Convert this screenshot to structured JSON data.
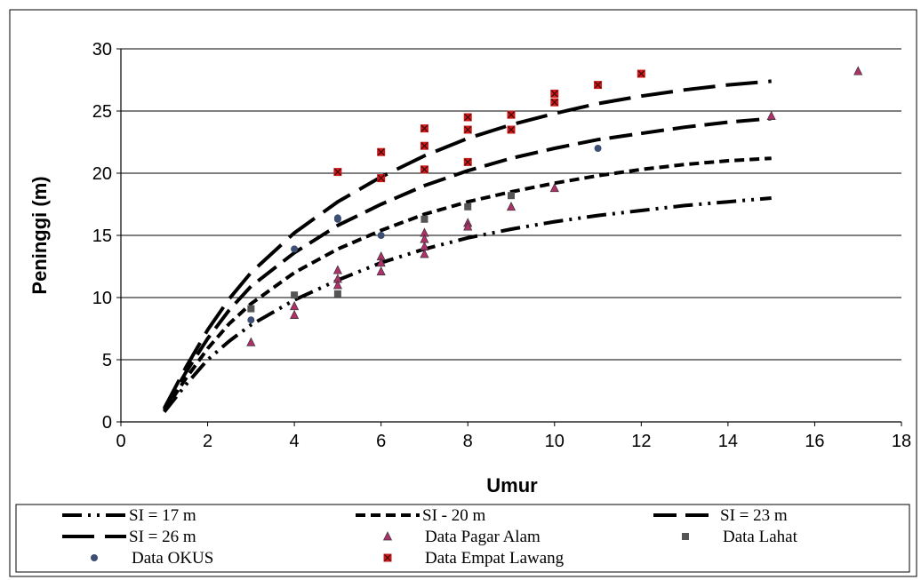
{
  "chart_data": {
    "type": "scatter",
    "title": "",
    "xlabel": "Umur",
    "ylabel": "Peninggi (m)",
    "xlim": [
      0,
      18
    ],
    "ylim": [
      0,
      30
    ],
    "xticks": [
      0,
      2,
      4,
      6,
      8,
      10,
      12,
      14,
      16,
      18
    ],
    "yticks": [
      0,
      5,
      10,
      15,
      20,
      25,
      30
    ],
    "grid": "horizontal",
    "legend_position": "bottom",
    "curves": [
      {
        "name": "SI = 17 m",
        "style": "dash-dot-dot",
        "x": [
          1,
          1.5,
          2,
          2.5,
          3,
          4,
          5,
          6,
          7,
          8,
          9,
          10,
          11,
          12,
          13,
          14,
          15
        ],
        "y": [
          0.8,
          3.0,
          5.0,
          6.5,
          7.8,
          9.8,
          11.4,
          12.8,
          13.9,
          14.8,
          15.5,
          16.1,
          16.6,
          17.0,
          17.4,
          17.7,
          18.0
        ]
      },
      {
        "name": "SI - 20 m",
        "style": "short-dash",
        "x": [
          1,
          1.5,
          2,
          2.5,
          3,
          4,
          5,
          6,
          7,
          8,
          9,
          10,
          11,
          12,
          13,
          14,
          15
        ],
        "y": [
          0.9,
          3.5,
          5.9,
          7.9,
          9.5,
          12.0,
          13.9,
          15.4,
          16.7,
          17.7,
          18.5,
          19.2,
          19.8,
          20.3,
          20.7,
          21.0,
          21.2
        ]
      },
      {
        "name": "SI = 23 m",
        "style": "long-dash",
        "x": [
          1,
          1.5,
          2,
          2.5,
          3,
          4,
          5,
          6,
          7,
          8,
          9,
          10,
          11,
          12,
          13,
          14,
          15
        ],
        "y": [
          1.0,
          4.0,
          6.7,
          9.0,
          10.9,
          13.6,
          15.8,
          17.5,
          19.0,
          20.2,
          21.2,
          22.0,
          22.7,
          23.2,
          23.7,
          24.1,
          24.4
        ]
      },
      {
        "name": "SI = 26 m",
        "style": "extra-long-dash",
        "x": [
          1,
          1.5,
          2,
          2.5,
          3,
          4,
          5,
          6,
          7,
          8,
          9,
          10,
          11,
          12,
          13,
          14,
          15
        ],
        "y": [
          1.1,
          4.4,
          7.4,
          9.9,
          12.0,
          15.2,
          17.7,
          19.7,
          21.4,
          22.8,
          23.9,
          24.8,
          25.6,
          26.2,
          26.7,
          27.1,
          27.4
        ]
      }
    ],
    "scatter": [
      {
        "name": "Data Pagar Alam",
        "marker": "triangle",
        "color": "#b0306a",
        "points": [
          [
            3,
            6.4
          ],
          [
            4,
            9.3
          ],
          [
            4,
            8.6
          ],
          [
            5,
            12.2
          ],
          [
            5,
            11.5
          ],
          [
            5,
            11.0
          ],
          [
            6,
            13.3
          ],
          [
            6,
            12.8
          ],
          [
            6,
            12.1
          ],
          [
            7,
            15.2
          ],
          [
            7,
            14.7
          ],
          [
            7,
            14.1
          ],
          [
            7,
            13.5
          ],
          [
            8,
            16.0
          ],
          [
            8,
            15.7
          ],
          [
            9,
            17.3
          ],
          [
            10,
            18.8
          ],
          [
            15,
            24.6
          ],
          [
            17,
            28.2
          ]
        ]
      },
      {
        "name": "Data Lahat",
        "marker": "square",
        "color": "#555555",
        "points": [
          [
            3,
            9.1
          ],
          [
            4,
            10.2
          ],
          [
            5,
            10.3
          ],
          [
            7,
            16.3
          ],
          [
            8,
            17.3
          ],
          [
            9,
            18.2
          ]
        ]
      },
      {
        "name": "Data OKUS",
        "marker": "circle",
        "color": "#3d4f73",
        "points": [
          [
            3,
            8.2
          ],
          [
            4,
            13.9
          ],
          [
            5,
            16.3
          ],
          [
            5,
            16.4
          ],
          [
            6,
            15.0
          ],
          [
            11,
            22.0
          ]
        ]
      },
      {
        "name": "Data Empat Lawang",
        "marker": "x-square",
        "color": "#d01a1a",
        "points": [
          [
            5,
            20.1
          ],
          [
            6,
            21.7
          ],
          [
            6,
            19.6
          ],
          [
            7,
            23.6
          ],
          [
            7,
            22.2
          ],
          [
            7,
            20.3
          ],
          [
            8,
            24.5
          ],
          [
            8,
            23.5
          ],
          [
            8,
            20.9
          ],
          [
            9,
            24.7
          ],
          [
            9,
            23.5
          ],
          [
            10,
            26.4
          ],
          [
            10,
            25.7
          ],
          [
            11,
            27.1
          ],
          [
            12,
            28.0
          ]
        ]
      }
    ],
    "legend": [
      "SI = 17 m",
      "SI - 20 m",
      "SI = 23 m",
      "SI = 26 m",
      "Data Pagar Alam",
      "Data Lahat",
      "Data OKUS",
      "Data Empat Lawang"
    ]
  }
}
